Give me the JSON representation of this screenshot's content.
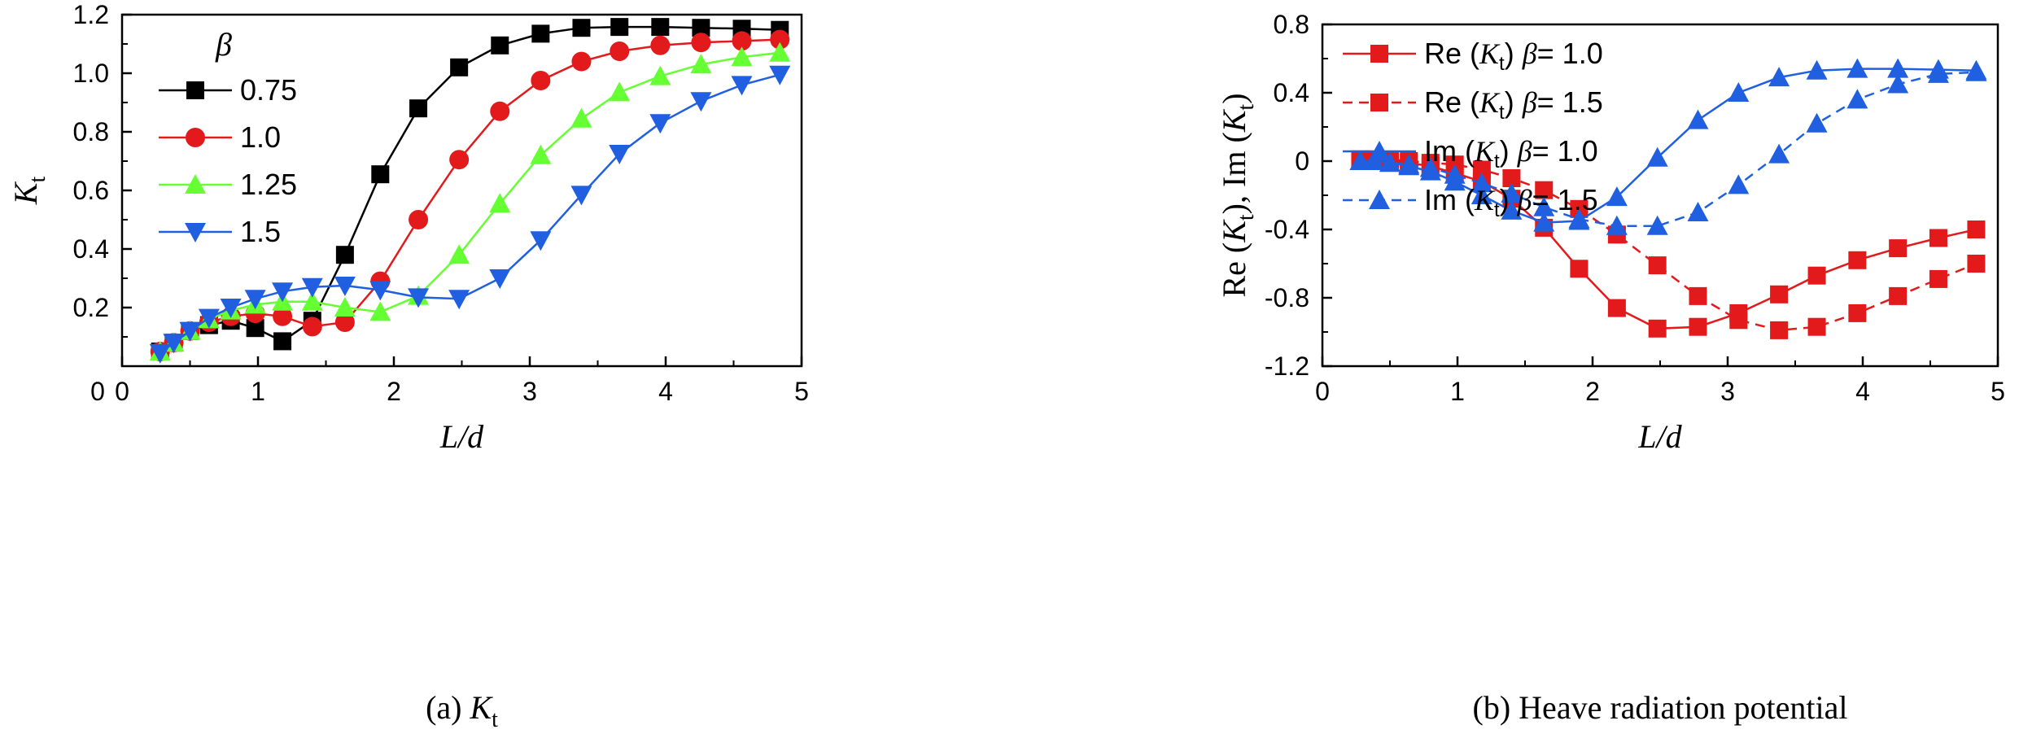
{
  "chart_data": [
    {
      "type": "line",
      "caption": "(a) K_t",
      "caption_prefix": "(a) ",
      "caption_main": "K",
      "caption_sub": "t",
      "xlabel": "L/d",
      "ylabel_main": "K",
      "ylabel_sub": "t",
      "xlim": [
        0,
        5
      ],
      "ylim": [
        0,
        1.2
      ],
      "xticks": [
        "0",
        "1",
        "2",
        "3",
        "4",
        "5"
      ],
      "xtick_values": [
        0,
        1,
        2,
        3,
        4,
        5
      ],
      "yticks": [
        "0.2",
        "0.4",
        "0.6",
        "0.8",
        "1.0",
        "1.2"
      ],
      "ytick_values": [
        0.2,
        0.4,
        0.6,
        0.8,
        1.0,
        1.2
      ],
      "legend_title": "β",
      "legend_position": "top-left",
      "series": [
        {
          "name": "0.75",
          "color": "#000000",
          "marker": "square",
          "dash": false,
          "x": [
            0.28,
            0.38,
            0.5,
            0.64,
            0.8,
            0.98,
            1.18,
            1.4,
            1.64,
            1.9,
            2.18,
            2.48,
            2.78,
            3.08,
            3.38,
            3.66,
            3.96,
            4.26,
            4.56,
            4.84
          ],
          "y": [
            0.05,
            0.08,
            0.12,
            0.14,
            0.155,
            0.13,
            0.085,
            0.155,
            0.38,
            0.655,
            0.88,
            1.02,
            1.095,
            1.135,
            1.155,
            1.158,
            1.158,
            1.155,
            1.152,
            1.148
          ]
        },
        {
          "name": "1.0",
          "color": "#e31a1c",
          "marker": "circle",
          "dash": false,
          "x": [
            0.28,
            0.38,
            0.5,
            0.64,
            0.8,
            0.98,
            1.18,
            1.4,
            1.64,
            1.9,
            2.18,
            2.48,
            2.78,
            3.08,
            3.38,
            3.66,
            3.96,
            4.26,
            4.56,
            4.84
          ],
          "y": [
            0.05,
            0.08,
            0.12,
            0.15,
            0.17,
            0.18,
            0.17,
            0.135,
            0.15,
            0.29,
            0.5,
            0.705,
            0.87,
            0.975,
            1.04,
            1.075,
            1.095,
            1.105,
            1.11,
            1.115
          ]
        },
        {
          "name": "1.25",
          "color": "#66ff33",
          "marker": "triangle-up",
          "dash": false,
          "x": [
            0.28,
            0.38,
            0.5,
            0.64,
            0.8,
            0.98,
            1.18,
            1.4,
            1.64,
            1.9,
            2.18,
            2.48,
            2.78,
            3.08,
            3.38,
            3.66,
            3.96,
            4.26,
            4.56,
            4.84
          ],
          "y": [
            0.05,
            0.08,
            0.12,
            0.16,
            0.19,
            0.21,
            0.22,
            0.22,
            0.2,
            0.185,
            0.24,
            0.38,
            0.555,
            0.72,
            0.845,
            0.935,
            0.99,
            1.03,
            1.055,
            1.07
          ]
        },
        {
          "name": "1.5",
          "color": "#1f5fe0",
          "marker": "triangle-down",
          "dash": false,
          "x": [
            0.28,
            0.38,
            0.5,
            0.64,
            0.8,
            0.98,
            1.18,
            1.4,
            1.64,
            1.9,
            2.18,
            2.48,
            2.78,
            3.08,
            3.38,
            3.66,
            3.96,
            4.26,
            4.56,
            4.84
          ],
          "y": [
            0.045,
            0.08,
            0.12,
            0.165,
            0.2,
            0.23,
            0.255,
            0.27,
            0.275,
            0.26,
            0.235,
            0.23,
            0.3,
            0.43,
            0.585,
            0.725,
            0.83,
            0.905,
            0.96,
            0.995
          ]
        }
      ]
    },
    {
      "type": "line",
      "caption": "(b) Heave radiation potential",
      "xlabel": "L/d",
      "ylabel": "Re (K_t), Im (K_t)",
      "xlim": [
        0,
        5
      ],
      "ylim": [
        -1.2,
        0.8
      ],
      "xticks": [
        "0",
        "1",
        "2",
        "3",
        "4",
        "5"
      ],
      "xtick_values": [
        0,
        1,
        2,
        3,
        4,
        5
      ],
      "yticks": [
        "-1.2",
        "-0.8",
        "-0.4",
        "0",
        "0.4",
        "0.8"
      ],
      "ytick_values": [
        -1.2,
        -0.8,
        -0.4,
        0,
        0.4,
        0.8
      ],
      "legend_position": "top-left",
      "series": [
        {
          "name": "Re (K_t) β= 1.0",
          "part": "Re",
          "beta": "1.0",
          "color": "#e31a1c",
          "marker": "square",
          "dash": false,
          "x": [
            0.28,
            0.38,
            0.5,
            0.64,
            0.8,
            0.98,
            1.18,
            1.4,
            1.64,
            1.9,
            2.18,
            2.48,
            2.78,
            3.08,
            3.38,
            3.66,
            3.96,
            4.26,
            4.56,
            4.84
          ],
          "y": [
            0.01,
            0.005,
            0,
            -0.01,
            -0.03,
            -0.07,
            -0.12,
            -0.22,
            -0.39,
            -0.63,
            -0.86,
            -0.98,
            -0.97,
            -0.89,
            -0.78,
            -0.67,
            -0.58,
            -0.51,
            -0.45,
            -0.4
          ]
        },
        {
          "name": "Re (K_t) β= 1.5",
          "part": "Re",
          "beta": "1.5",
          "color": "#e31a1c",
          "marker": "square",
          "dash": true,
          "x": [
            0.28,
            0.38,
            0.5,
            0.64,
            0.8,
            0.98,
            1.18,
            1.4,
            1.64,
            1.9,
            2.18,
            2.48,
            2.78,
            3.08,
            3.38,
            3.66,
            3.96,
            4.26,
            4.56,
            4.84
          ],
          "y": [
            0.01,
            0.01,
            0.01,
            0,
            -0.01,
            -0.02,
            -0.05,
            -0.1,
            -0.17,
            -0.28,
            -0.43,
            -0.61,
            -0.79,
            -0.93,
            -0.99,
            -0.97,
            -0.89,
            -0.79,
            -0.69,
            -0.6
          ]
        },
        {
          "name": "Im (K_t) β= 1.0",
          "part": "Im",
          "beta": "1.0",
          "color": "#1f5fe0",
          "marker": "triangle-up",
          "dash": false,
          "x": [
            0.28,
            0.38,
            0.5,
            0.64,
            0.8,
            0.98,
            1.18,
            1.4,
            1.64,
            1.9,
            2.18,
            2.48,
            2.78,
            3.08,
            3.38,
            3.66,
            3.96,
            4.26,
            4.56,
            4.84
          ],
          "y": [
            0,
            0,
            -0.01,
            -0.03,
            -0.06,
            -0.12,
            -0.2,
            -0.29,
            -0.36,
            -0.35,
            -0.21,
            0.02,
            0.24,
            0.4,
            0.49,
            0.53,
            0.54,
            0.54,
            0.535,
            0.53
          ]
        },
        {
          "name": "Im (K_t) β= 1.5",
          "part": "Im",
          "beta": "1.5",
          "color": "#1f5fe0",
          "marker": "triangle-up",
          "dash": true,
          "x": [
            0.28,
            0.38,
            0.5,
            0.64,
            0.8,
            0.98,
            1.18,
            1.4,
            1.64,
            1.9,
            2.18,
            2.48,
            2.78,
            3.08,
            3.38,
            3.66,
            3.96,
            4.26,
            4.56,
            4.84
          ],
          "y": [
            0,
            0,
            -0.01,
            -0.02,
            -0.04,
            -0.08,
            -0.13,
            -0.19,
            -0.27,
            -0.34,
            -0.38,
            -0.38,
            -0.3,
            -0.14,
            0.04,
            0.22,
            0.36,
            0.45,
            0.51,
            0.52
          ]
        }
      ]
    }
  ]
}
